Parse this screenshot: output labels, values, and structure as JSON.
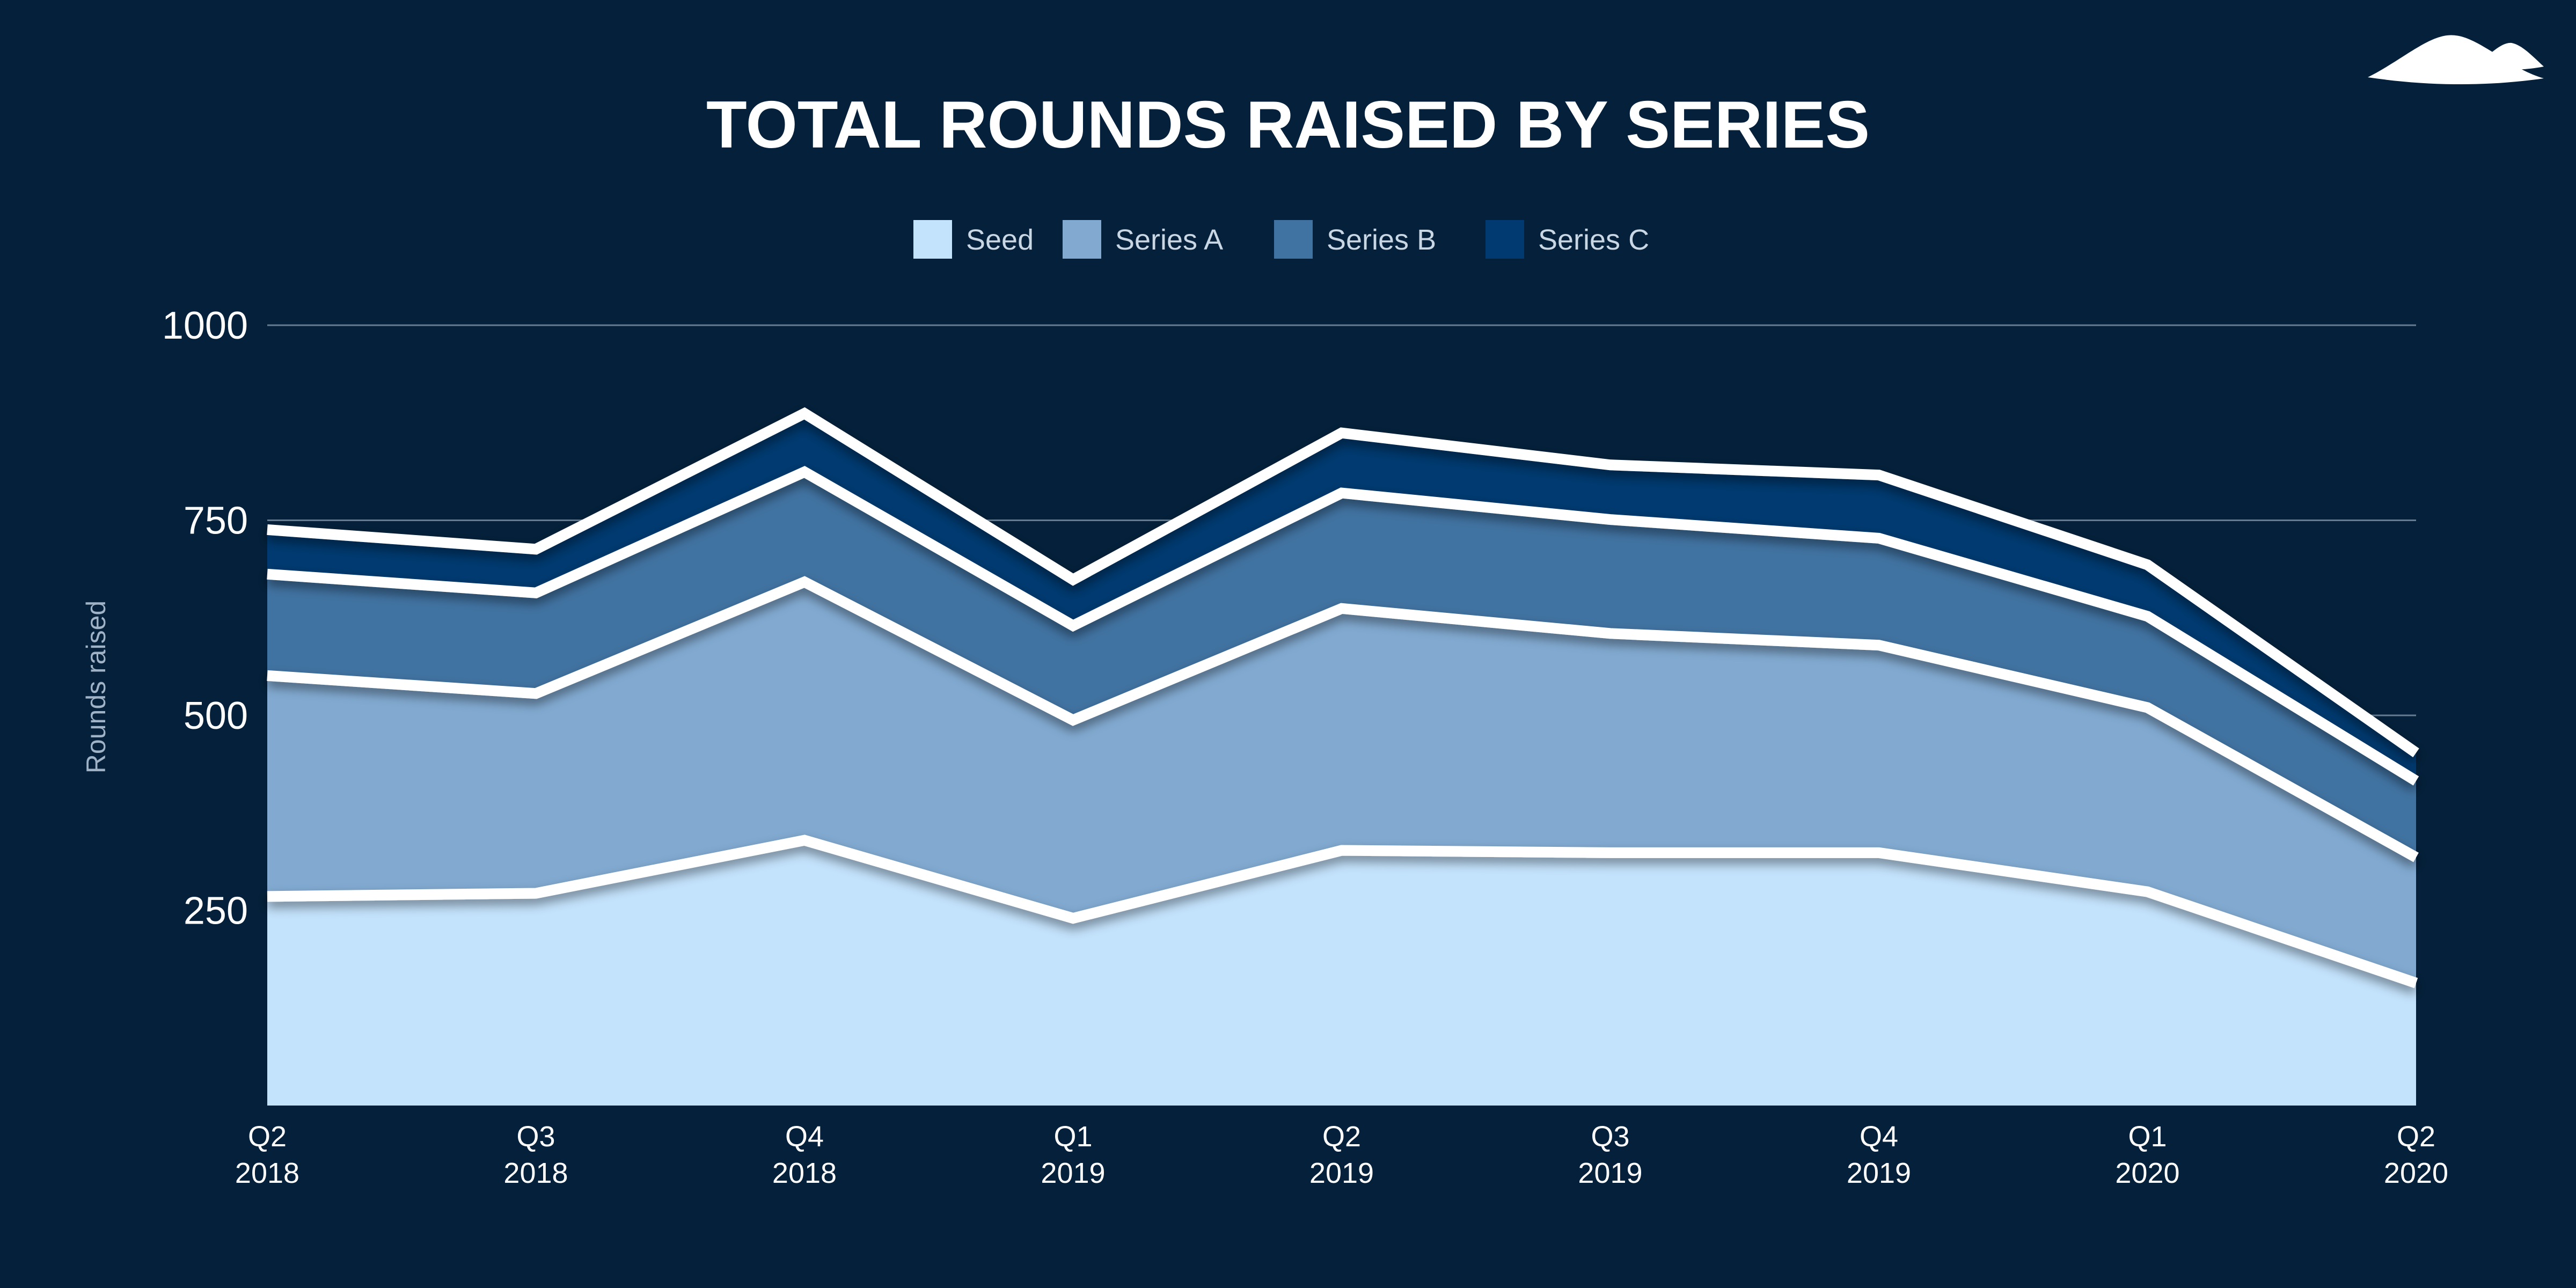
{
  "chart_data": {
    "type": "area",
    "stacked": true,
    "title": "TOTAL ROUNDS RAISED BY SERIES",
    "ylabel": "Rounds raised",
    "xlabel": "",
    "ylim": [
      0,
      1000
    ],
    "yticks": [
      250,
      500,
      750,
      1000
    ],
    "grid": true,
    "legend_position": "top-center",
    "categories": [
      {
        "quarter": "Q2",
        "year": "2018"
      },
      {
        "quarter": "Q3",
        "year": "2018"
      },
      {
        "quarter": "Q4",
        "year": "2018"
      },
      {
        "quarter": "Q1",
        "year": "2019"
      },
      {
        "quarter": "Q2",
        "year": "2019"
      },
      {
        "quarter": "Q3",
        "year": "2019"
      },
      {
        "quarter": "Q4",
        "year": "2019"
      },
      {
        "quarter": "Q1",
        "year": "2020"
      },
      {
        "quarter": "Q2",
        "year": "2020"
      }
    ],
    "series": [
      {
        "name": "Seed",
        "color": "#c3e2fc",
        "values": [
          268,
          272,
          340,
          240,
          327,
          324,
          324,
          274,
          157
        ]
      },
      {
        "name": "Series A",
        "color": "#82aad1",
        "values": [
          283,
          256,
          331,
          254,
          310,
          281,
          266,
          236,
          161
        ]
      },
      {
        "name": "Series B",
        "color": "#4173a2",
        "values": [
          130,
          129,
          141,
          121,
          148,
          146,
          137,
          117,
          98
        ]
      },
      {
        "name": "Series C",
        "color": "#003a70",
        "values": [
          57,
          56,
          75,
          59,
          77,
          70,
          81,
          66,
          36
        ]
      }
    ]
  },
  "colors": {
    "background": "#04203a",
    "outline": "#ffffff",
    "logo": "#ffffff"
  }
}
